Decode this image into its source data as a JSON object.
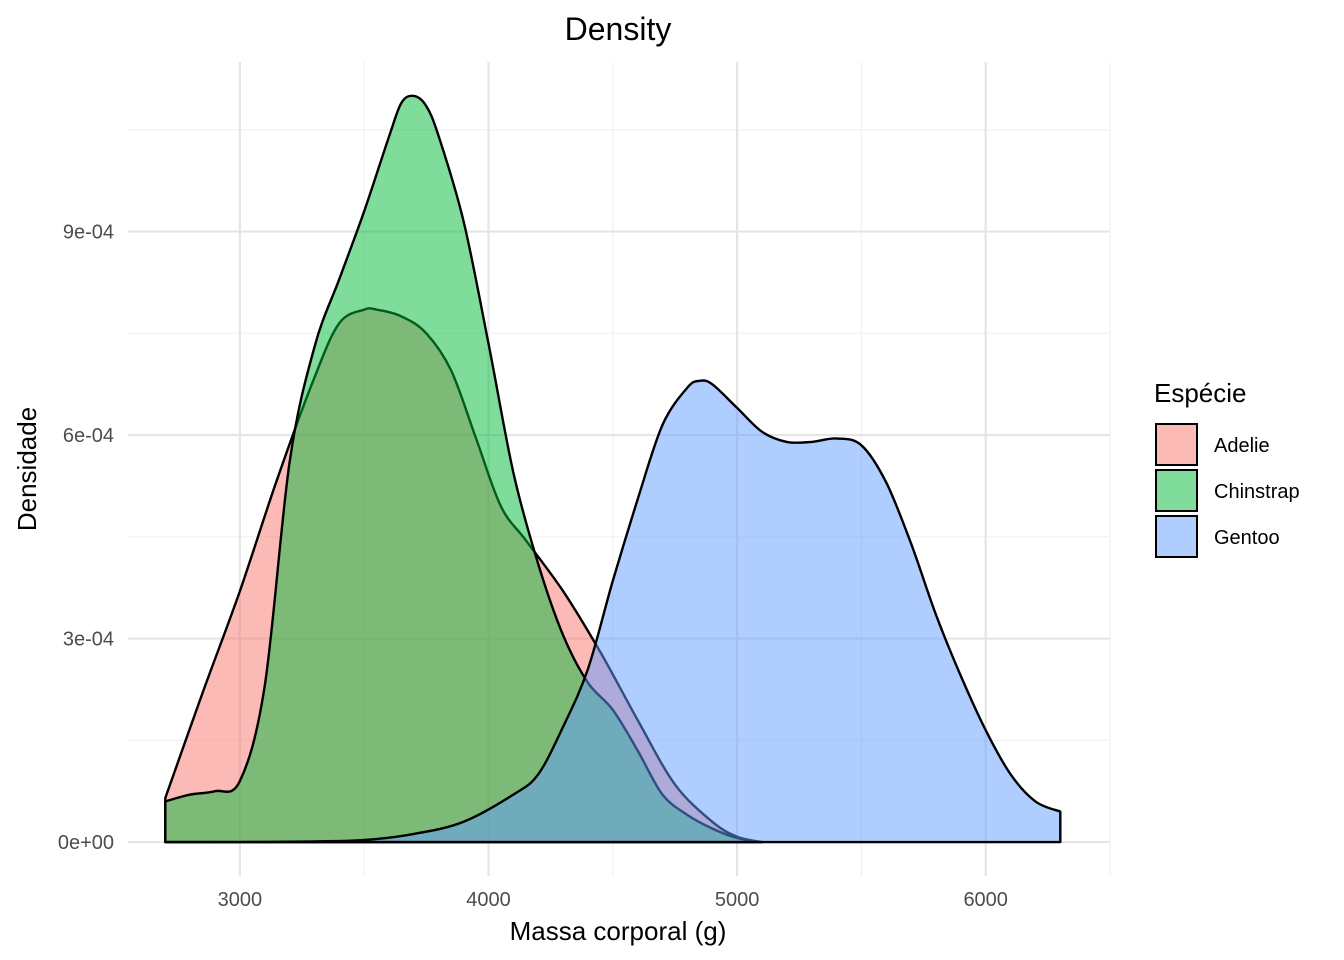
{
  "chart_data": {
    "type": "area",
    "title": "Density",
    "xlabel": "Massa corporal (g)",
    "ylabel": "Densidade",
    "xlim": [
      2550,
      6500
    ],
    "ylim": [
      -5e-05,
      0.00115
    ],
    "x_ticks": [
      3000,
      4000,
      5000,
      6000
    ],
    "x_tick_labels": [
      "3000",
      "4000",
      "5000",
      "6000"
    ],
    "y_ticks": [
      0,
      0.0003,
      0.0006,
      0.0009
    ],
    "y_tick_labels": [
      "0e+00",
      "3e-04",
      "6e-04",
      "9e-04"
    ],
    "grid": true,
    "legend": {
      "title": "Espécie",
      "placement": "right"
    },
    "series": [
      {
        "name": "Adelie",
        "color": "#F8766D",
        "x": [
          2700,
          2850,
          3000,
          3150,
          3300,
          3400,
          3500,
          3550,
          3650,
          3750,
          3850,
          3950,
          4050,
          4150,
          4300,
          4450,
          4600,
          4750,
          4900,
          5000,
          5100
        ],
        "y": [
          6.5e-05,
          0.00022,
          0.00037,
          0.000535,
          0.000685,
          0.000765,
          0.000785,
          0.000785,
          0.000775,
          0.00075,
          0.000695,
          0.000595,
          0.000495,
          0.000445,
          0.00037,
          0.00028,
          0.00018,
          8.5e-05,
          3e-05,
          8e-06,
          0.0
        ]
      },
      {
        "name": "Chinstrap",
        "color": "#00BA38",
        "x": [
          2700,
          2800,
          2900,
          3000,
          3100,
          3200,
          3300,
          3400,
          3500,
          3600,
          3650,
          3700,
          3750,
          3800,
          3900,
          4000,
          4100,
          4200,
          4300,
          4400,
          4500,
          4600,
          4700,
          4800,
          4900,
          5000,
          5100
        ],
        "y": [
          6e-05,
          7e-05,
          7.5e-05,
          9e-05,
          0.00023,
          0.00056,
          0.00073,
          0.00083,
          0.00093,
          0.00104,
          0.00109,
          0.0011,
          0.001085,
          0.00104,
          0.000915,
          0.000735,
          0.000545,
          0.00041,
          0.000305,
          0.000235,
          0.000195,
          0.000135,
          7e-05,
          4e-05,
          2e-05,
          6e-06,
          0.0
        ]
      },
      {
        "name": "Gentoo",
        "color": "#619CFF",
        "x": [
          2700,
          3000,
          3300,
          3500,
          3700,
          3900,
          4100,
          4200,
          4300,
          4400,
          4500,
          4600,
          4700,
          4800,
          4850,
          4900,
          5000,
          5100,
          5200,
          5300,
          5400,
          5500,
          5600,
          5700,
          5800,
          5900,
          6000,
          6100,
          6200,
          6300
        ],
        "y": [
          0.0,
          0.0,
          1e-06,
          3e-06,
          1.2e-05,
          3e-05,
          7e-05,
          0.0001,
          0.00017,
          0.000255,
          0.000385,
          0.000505,
          0.000615,
          0.00067,
          0.00068,
          0.000675,
          0.00064,
          0.000605,
          0.00059,
          0.00059,
          0.000595,
          0.000585,
          0.00053,
          0.00044,
          0.000335,
          0.000245,
          0.000165,
          0.0001,
          6e-05,
          4.5e-05
        ]
      }
    ]
  }
}
